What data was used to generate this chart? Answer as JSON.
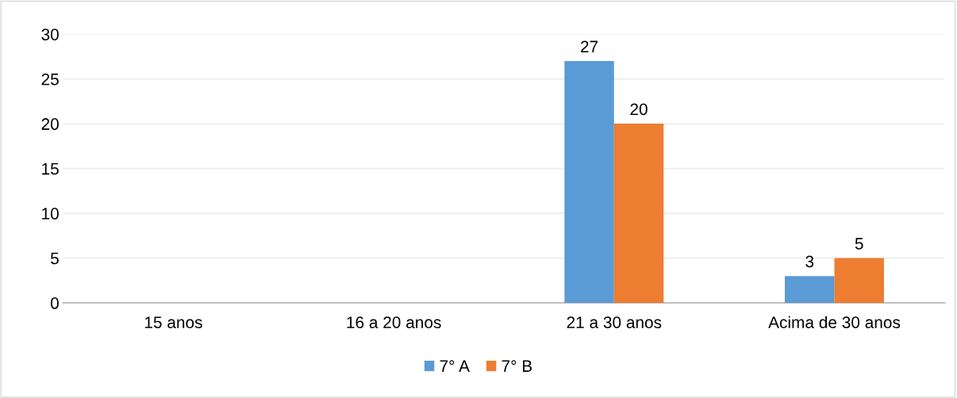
{
  "chart_data": {
    "type": "bar",
    "categories": [
      "15 anos",
      "16 a 20 anos",
      "21 a 30 anos",
      "Acima de 30 anos"
    ],
    "series": [
      {
        "name": "7° A",
        "color": "#5b9bd5",
        "values": [
          null,
          null,
          27,
          3
        ],
        "value_labels": [
          null,
          null,
          "27",
          "3"
        ]
      },
      {
        "name": "7° B",
        "color": "#ed7d31",
        "values": [
          null,
          null,
          20,
          5
        ],
        "value_labels": [
          null,
          null,
          "20",
          "5"
        ]
      }
    ],
    "ylim": [
      0,
      30
    ],
    "yticks": [
      0,
      5,
      10,
      15,
      20,
      25,
      30
    ],
    "grid": "y",
    "legend": "bottom"
  }
}
